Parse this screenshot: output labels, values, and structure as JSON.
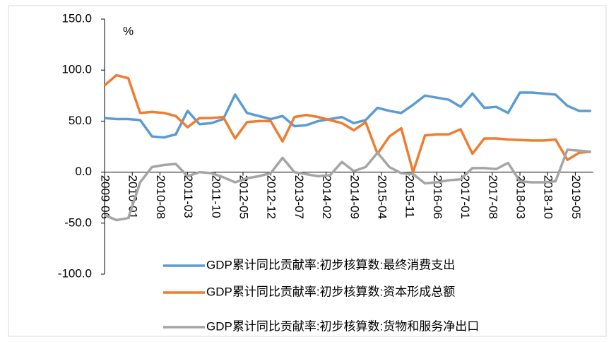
{
  "chart_data": {
    "type": "line",
    "annotation": "%",
    "x": [
      "2009-06",
      "2009-09",
      "2009-12",
      "2010-03",
      "2010-06",
      "2010-09",
      "2010-12",
      "2011-03",
      "2011-06",
      "2011-09",
      "2011-12",
      "2012-03",
      "2012-06",
      "2012-09",
      "2012-12",
      "2013-03",
      "2013-06",
      "2013-09",
      "2013-12",
      "2014-03",
      "2014-06",
      "2014-09",
      "2014-12",
      "2015-03",
      "2015-06",
      "2015-09",
      "2015-12",
      "2016-03",
      "2016-06",
      "2016-09",
      "2016-12",
      "2017-03",
      "2017-06",
      "2017-09",
      "2017-12",
      "2018-03",
      "2018-06",
      "2018-09",
      "2018-12",
      "2019-03",
      "2019-06",
      "2019-09"
    ],
    "series": [
      {
        "name": "GDP累计同比贡献率:初步核算数:最终消费支出",
        "color": "#5b9bd5",
        "values": [
          53,
          52,
          52,
          51,
          35,
          34,
          37,
          60,
          47,
          48,
          52,
          76,
          58,
          55,
          52,
          55,
          45,
          46,
          50,
          52,
          54,
          48,
          51,
          63,
          60,
          58,
          66,
          75,
          73,
          71,
          64,
          77,
          63,
          64,
          58,
          78,
          78,
          77,
          76,
          65,
          60,
          60
        ]
      },
      {
        "name": "GDP累计同比贡献率:初步核算数:资本形成总额",
        "color": "#ed7d31",
        "values": [
          85,
          95,
          92,
          58,
          59,
          58,
          55,
          44,
          53,
          53,
          54,
          33,
          49,
          50,
          50,
          30,
          54,
          56,
          54,
          51,
          48,
          41,
          49,
          18,
          35,
          43,
          0,
          36,
          37,
          37,
          42,
          18,
          33,
          33,
          32,
          31.5,
          31,
          31,
          32,
          12,
          19,
          20
        ]
      },
      {
        "name": "GDP累计同比贡献率:初步核算数:货物和服务净出口",
        "color": "#a5a5a5",
        "values": [
          -42,
          -47,
          -45,
          -10,
          5,
          7,
          8,
          -4,
          0,
          -1,
          -5,
          -10,
          -6,
          -4,
          -1,
          14,
          0,
          -2,
          -4,
          -3,
          10,
          1,
          5,
          19,
          5,
          -1,
          -2,
          -11,
          -10,
          -8,
          -7,
          4,
          4,
          3,
          9,
          -9,
          -10,
          -10,
          -9,
          22,
          21,
          20
        ]
      }
    ],
    "ylim": [
      -100,
      150
    ],
    "yticks": [
      {
        "value": -100,
        "label": "-100.0"
      },
      {
        "value": -50,
        "label": "-50.0"
      },
      {
        "value": 0,
        "label": "0.0"
      },
      {
        "value": 50,
        "label": "50.0"
      },
      {
        "value": 100,
        "label": "100.0"
      },
      {
        "value": 150,
        "label": "150.0"
      }
    ],
    "xticks": [
      "2009-06",
      "2010-01",
      "2010-08",
      "2011-03",
      "2011-10",
      "2012-05",
      "2012-12",
      "2013-07",
      "2014-02",
      "2014-09",
      "2015-04",
      "2015-11",
      "2016-06",
      "2017-01",
      "2017-08",
      "2018-03",
      "2018-10",
      "2019-05"
    ]
  }
}
